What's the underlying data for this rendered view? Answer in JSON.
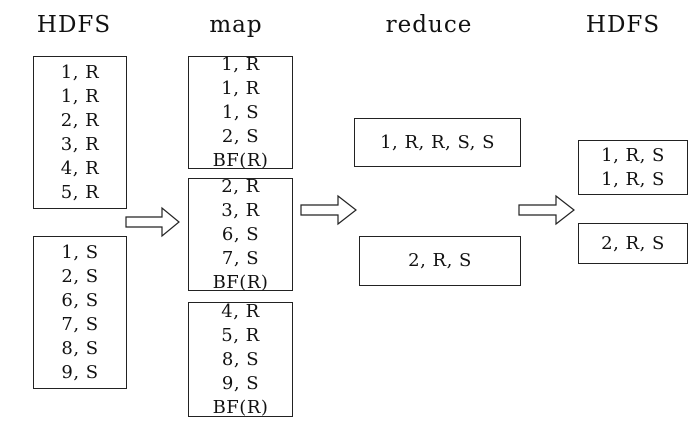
{
  "headers": {
    "hdfs_in": "HDFS",
    "map": "map",
    "reduce": "reduce",
    "hdfs_out": "HDFS"
  },
  "hdfs_input": {
    "r_records": [
      "1, R",
      "1, R",
      "2, R",
      "3, R",
      "4, R",
      "5, R"
    ],
    "s_records": [
      "1, S",
      "2, S",
      "6, S",
      "7, S",
      "8, S",
      "9, S"
    ]
  },
  "map_tasks": [
    {
      "records": [
        "1, R",
        "1, R",
        "1, S",
        "2, S",
        "BF(R)"
      ]
    },
    {
      "records": [
        "2, R",
        "3, R",
        "6, S",
        "7, S",
        "BF(R)"
      ]
    },
    {
      "records": [
        "4, R",
        "5, R",
        "8, S",
        "9, S",
        "BF(R)"
      ]
    }
  ],
  "reduce_tasks": [
    {
      "records": [
        "1, R, R, S, S"
      ]
    },
    {
      "records": [
        "2, R, S"
      ]
    }
  ],
  "hdfs_output": [
    {
      "records": [
        "1, R, S",
        "1, R, S"
      ]
    },
    {
      "records": [
        "2, R, S"
      ]
    }
  ]
}
